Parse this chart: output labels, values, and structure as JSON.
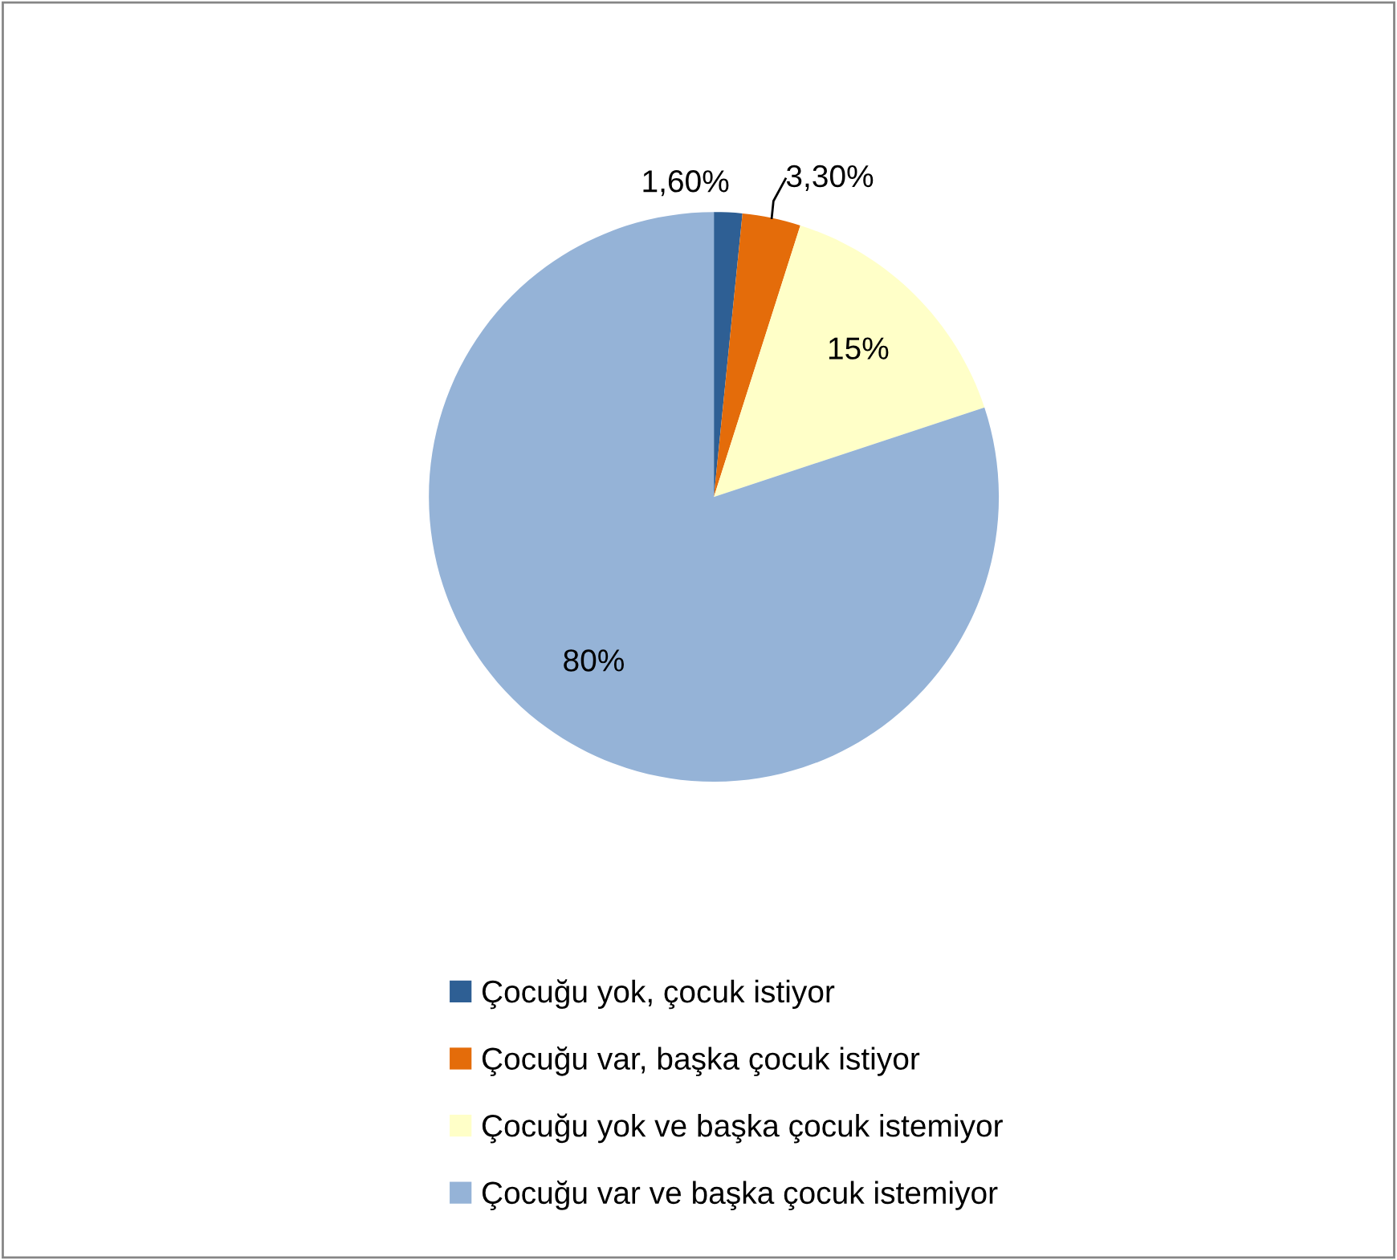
{
  "chart_data": {
    "type": "pie",
    "categories": [
      "Çocuğu yok, çocuk istiyor",
      "Çocuğu var, başka çocuk istiyor",
      "Çocuğu yok ve başka çocuk istemiyor",
      "Çocuğu var ve başka çocuk istemiyor"
    ],
    "values": [
      1.6,
      3.3,
      15,
      80
    ],
    "colors": [
      "#2e5f94",
      "#e46c0a",
      "#ffffc8",
      "#95b3d7"
    ],
    "value_labels": [
      "1,60%",
      "3,30%",
      "15%",
      "80%"
    ],
    "legend": "bottom"
  }
}
